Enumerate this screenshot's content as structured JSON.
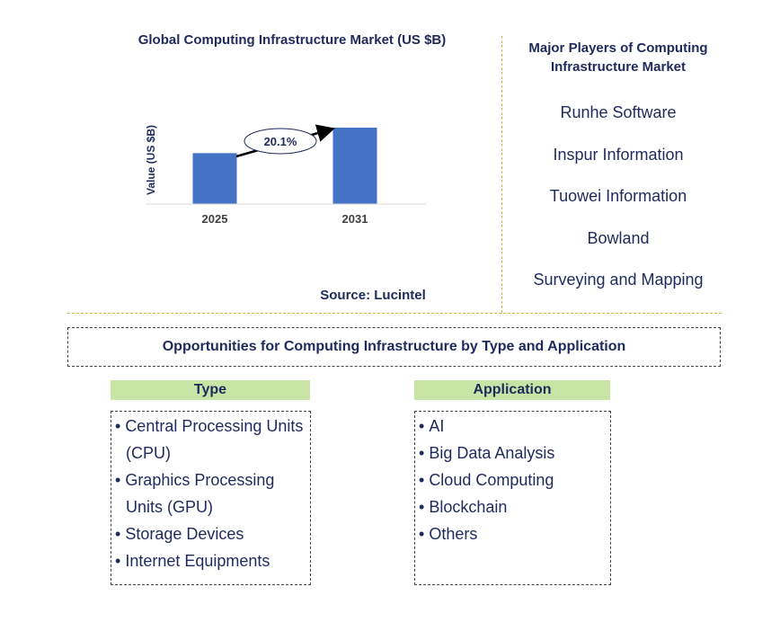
{
  "chart_data": {
    "type": "bar",
    "title": "Global Computing Infrastructure Market (US $B)",
    "ylabel": "Value (US $B)",
    "xlabel": "",
    "categories": [
      "2025",
      "2031"
    ],
    "values": [
      1,
      1.5
    ],
    "annotation": "20.1%",
    "bar_color": "#4472c4",
    "grid": false,
    "source": "Source: Lucintel"
  },
  "players": {
    "title": "Major Players of Computing Infrastructure Market",
    "items": [
      "Runhe Software",
      "Inspur Information",
      "Tuowei Information",
      "Bowland",
      "Surveying and Mapping"
    ]
  },
  "opportunities": {
    "title": "Opportunities for Computing Infrastructure by Type and Application",
    "type": {
      "heading": "Type",
      "items": [
        "Central Processing Units (CPU)",
        "Graphics Processing Units (GPU)",
        "Storage Devices",
        "Internet Equipments"
      ]
    },
    "application": {
      "heading": "Application",
      "items": [
        "AI",
        "Big Data Analysis",
        "Cloud Computing",
        "Blockchain",
        "Others"
      ]
    }
  },
  "colors": {
    "text": "#1f2a5c",
    "header_fill": "#c9e5a6",
    "divider": "#d4b84a"
  }
}
